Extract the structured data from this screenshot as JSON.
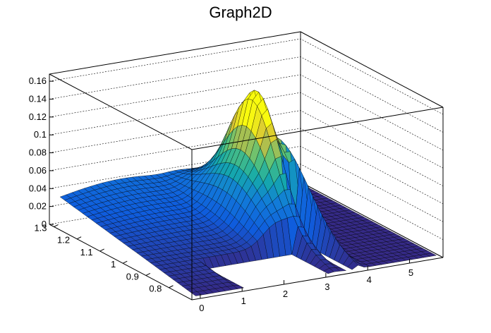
{
  "chart_data": {
    "type": "surface",
    "title": "Graph2D",
    "xlabel": "",
    "ylabel": "",
    "zlabel": "",
    "xlim": [
      -0.2,
      5.8
    ],
    "ylim": [
      0.7,
      1.32
    ],
    "zlim": [
      0,
      0.168
    ],
    "x_ticks": [
      "0",
      "1",
      "2",
      "3",
      "4",
      "5"
    ],
    "y_ticks": [
      "0.8",
      "0.9",
      "1",
      "1.1",
      "1.2",
      "1.3"
    ],
    "z_ticks": [
      "0",
      "0.02",
      "0.04",
      "0.06",
      "0.08",
      "0.1",
      "0.12",
      "0.14",
      "0.16"
    ],
    "grid": true,
    "colormap": "viridis-like (blue to yellow)",
    "colors": {
      "low": "#352a87",
      "mid": "#1fa9a0",
      "high": "#f9fb0e",
      "line": "#000000"
    },
    "surface_description": "Sampled surface: low blue plateau (z≈0.01–0.04) at small x and high y, dips to ~0 at low y, strong yellow peak z≈0.13 near x≈3.4, y≈1.0, narrow ridge near x≈3.8, flat zero region x>4."
  }
}
